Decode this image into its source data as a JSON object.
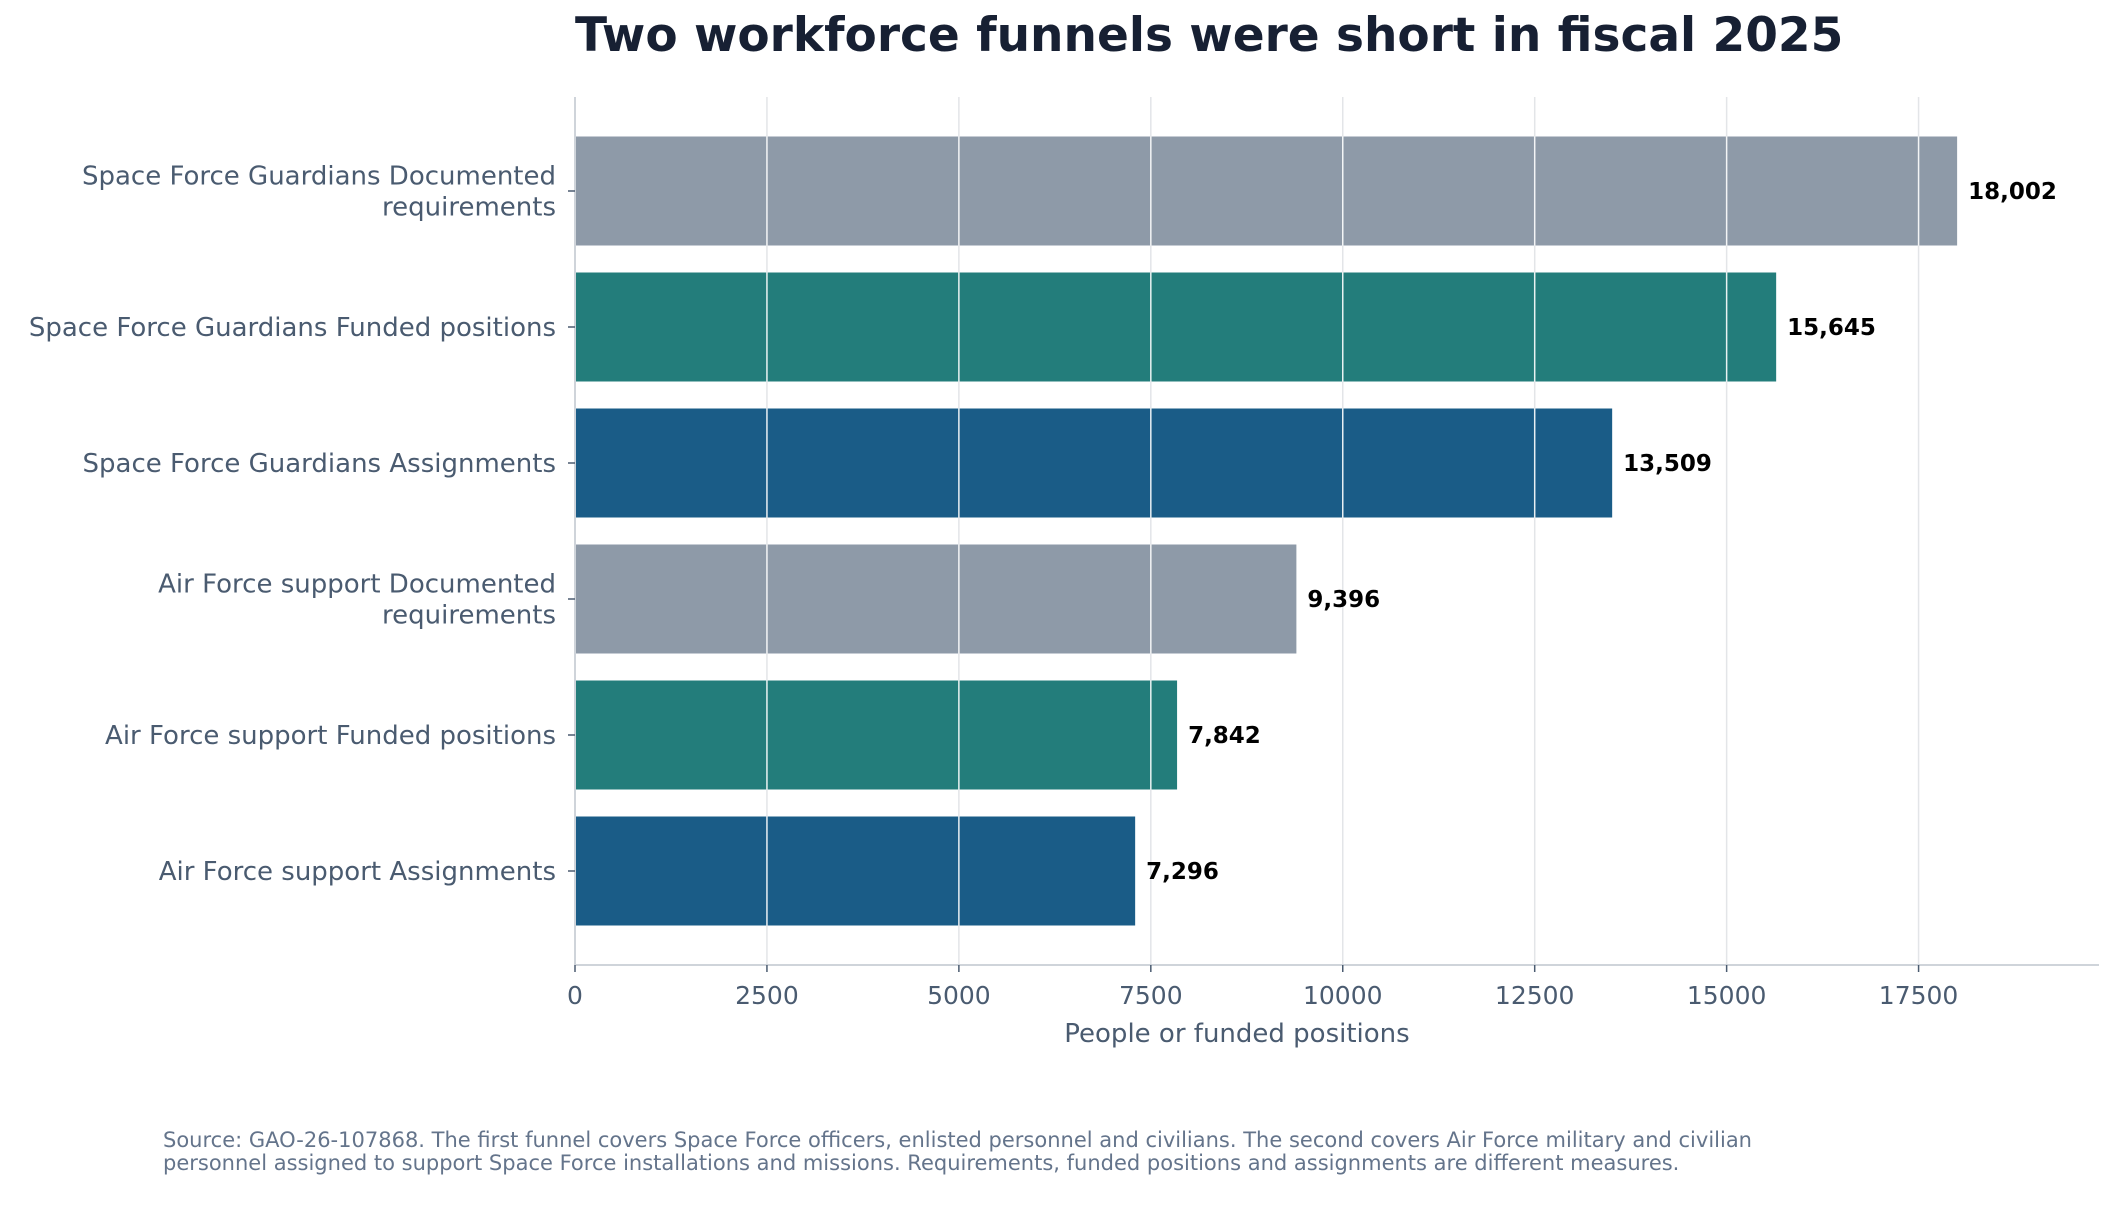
{
  "chart_data": {
    "type": "bar",
    "orientation": "horizontal",
    "title": "Two workforce funnels were short in fiscal 2025",
    "xlabel": "People or funded positions",
    "ylabel": "",
    "xlim": [
      0,
      19850
    ],
    "xticks": [
      0,
      2500,
      5000,
      7500,
      10000,
      12500,
      15000,
      17500
    ],
    "grid": true,
    "categories": [
      "Space Force Guardians Documented requirements",
      "Space Force Guardians Funded positions",
      "Space Force Guardians Assignments",
      "Air Force support Documented requirements",
      "Air Force support Funded positions",
      "Air Force support Assignments"
    ],
    "category_lines": [
      [
        "Space Force Guardians Documented",
        "requirements"
      ],
      [
        "Space Force Guardians Funded positions"
      ],
      [
        "Space Force Guardians Assignments"
      ],
      [
        "Air Force support Documented",
        "requirements"
      ],
      [
        "Air Force support Funded positions"
      ],
      [
        "Air Force support Assignments"
      ]
    ],
    "values": [
      18002,
      15645,
      13509,
      9396,
      7842,
      7296
    ],
    "value_labels": [
      "18,002",
      "15,645",
      "13,509",
      "9,396",
      "7,842",
      "7,296"
    ],
    "bar_colors": [
      "#8e9aa8",
      "#237d7b",
      "#1a5c87",
      "#8e9aa8",
      "#237d7b",
      "#1a5c87"
    ],
    "source": "Source: GAO-26-107868. The first funnel covers Space Force officers, enlisted personnel and civilians. The second covers Air Force military and civilian personnel assigned to support Space Force installations and missions. Requirements, funded positions and assignments are different measures."
  }
}
